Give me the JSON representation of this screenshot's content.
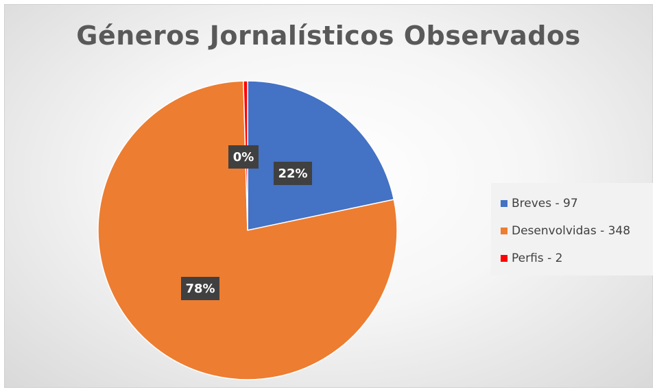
{
  "chart_data": {
    "type": "pie",
    "title": "Géneros Jornalísticos Observados",
    "categories": [
      "Breves - 97",
      "Desenvolvidas - 348",
      "Perfis - 2"
    ],
    "values": [
      97,
      348,
      2
    ],
    "data_labels": [
      "22%",
      "78%",
      "0%"
    ],
    "colors": [
      "#4472C4",
      "#ED7D31",
      "#FF0000"
    ],
    "legend": "right",
    "start_angle": "top",
    "direction": "clockwise"
  }
}
